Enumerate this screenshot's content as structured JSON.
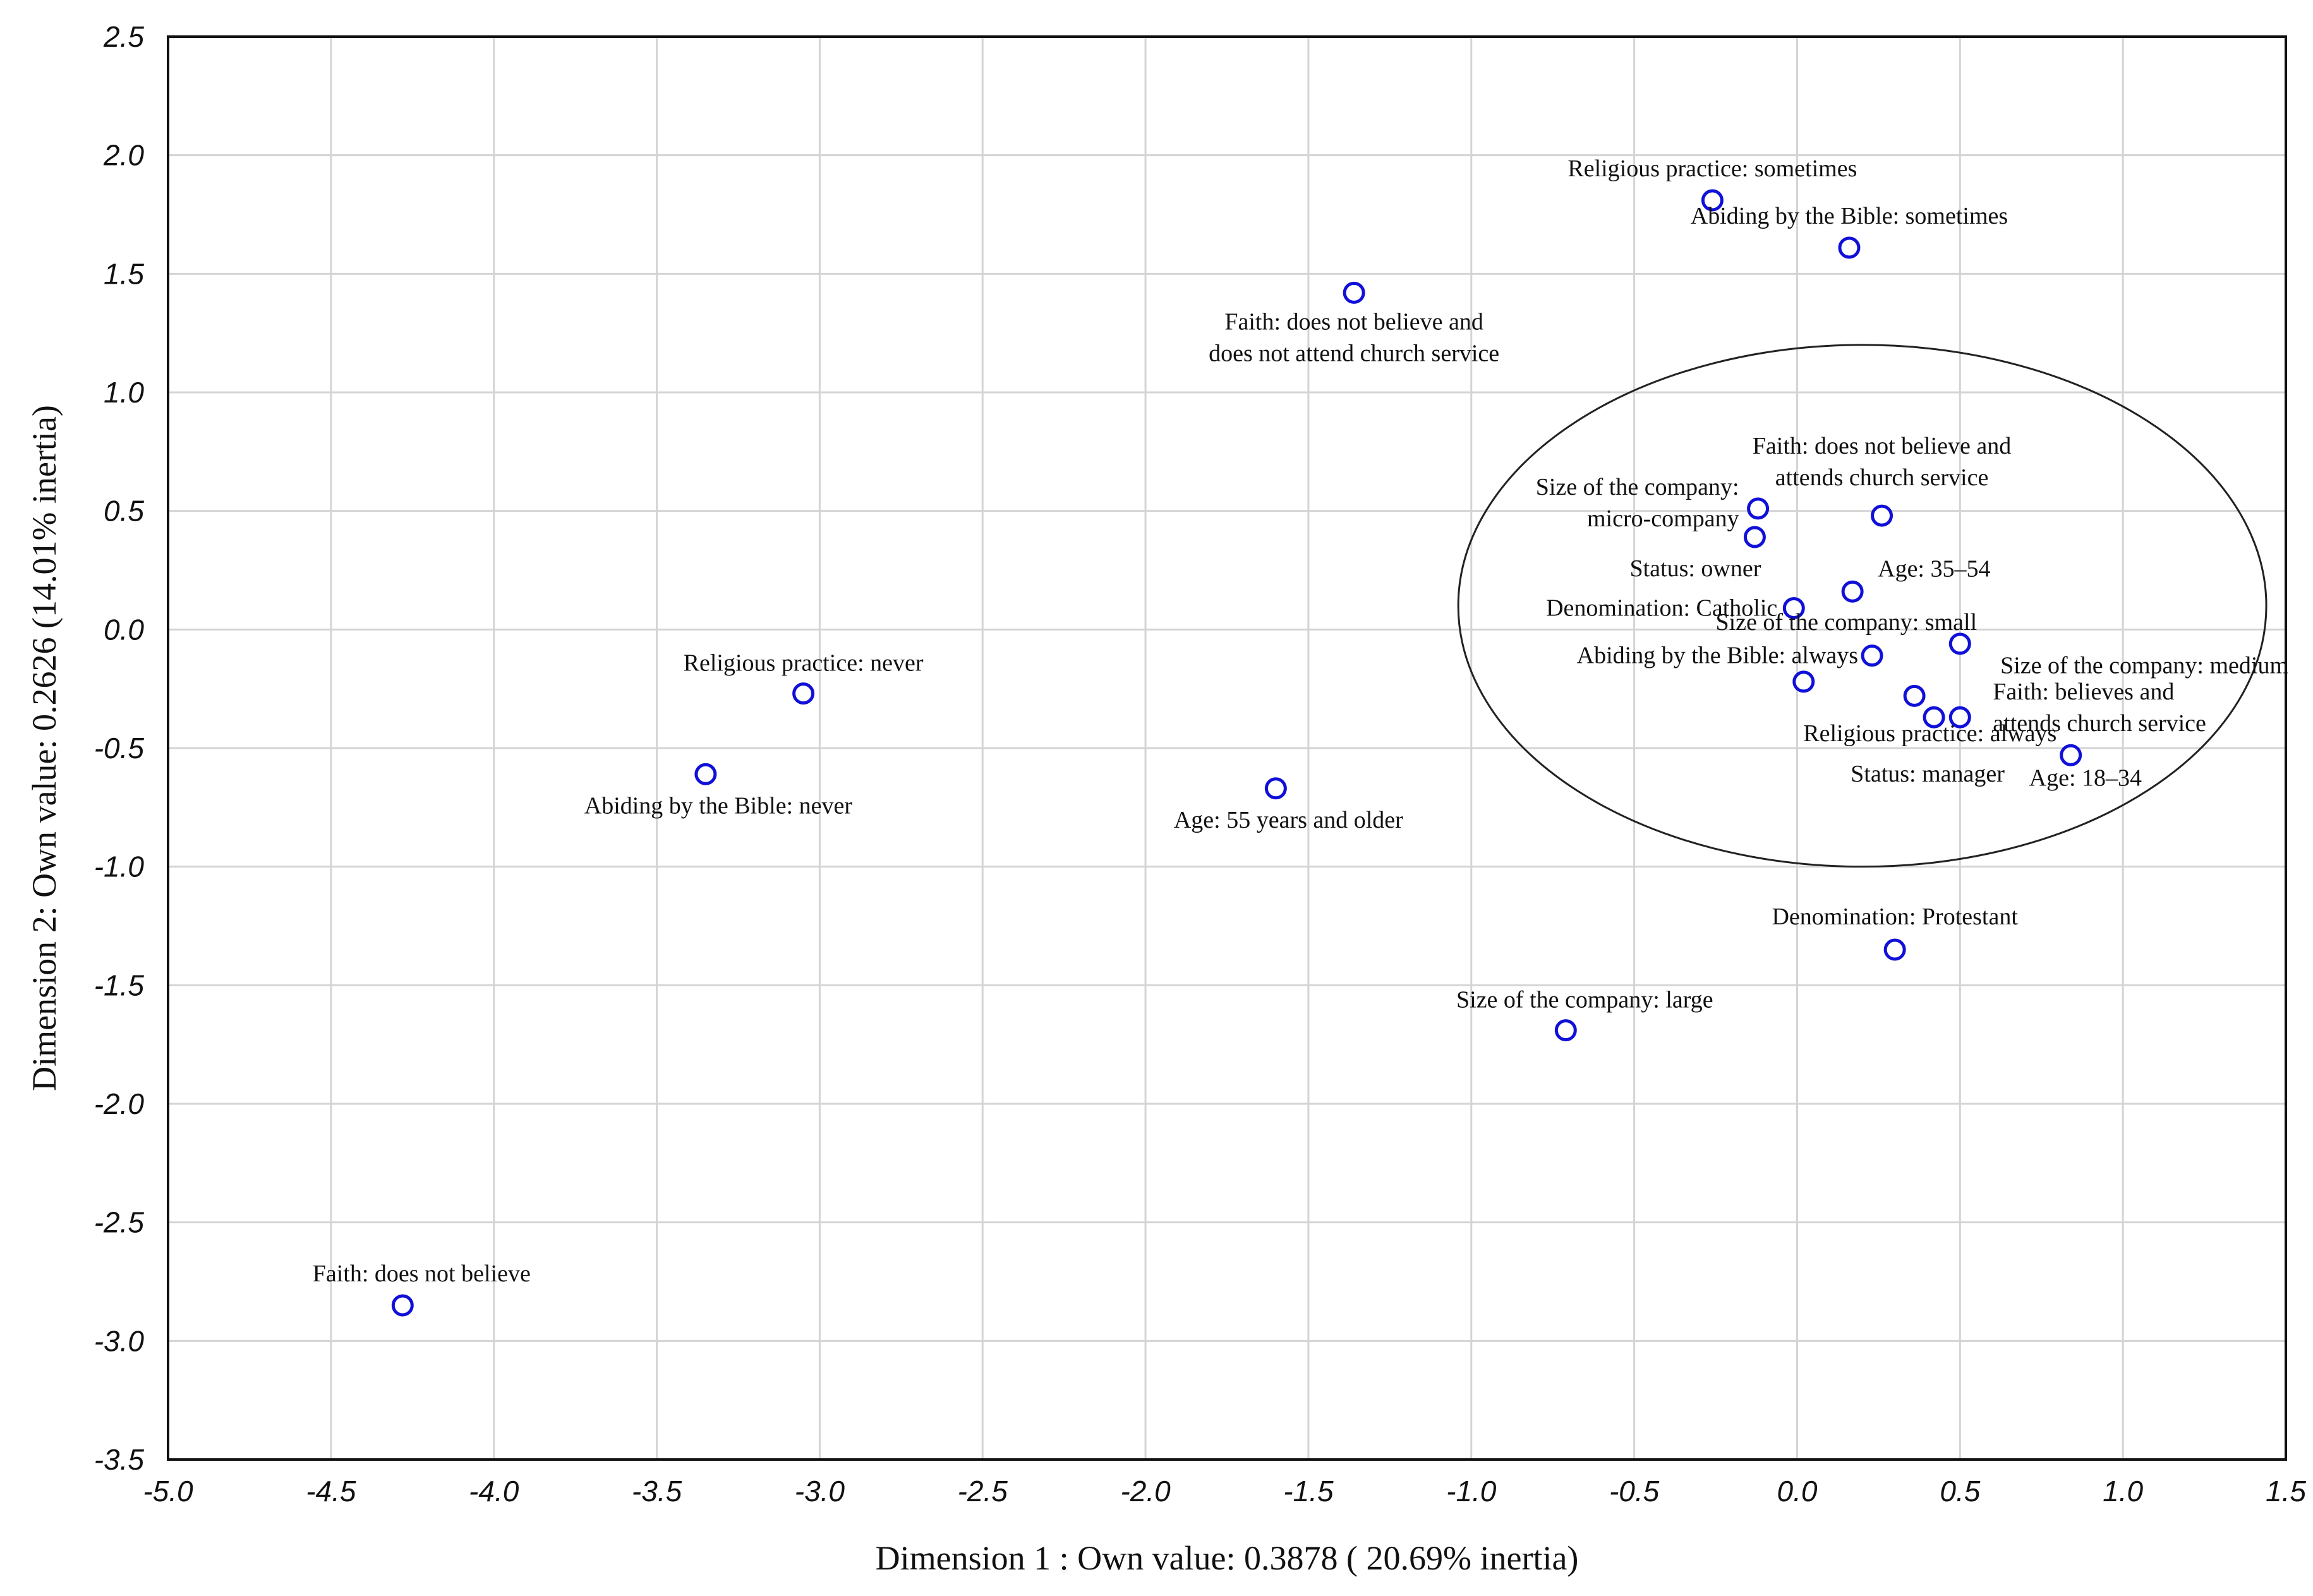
{
  "chart_data": {
    "type": "scatter",
    "title": "",
    "xlabel": "Dimension 1 : Own value: 0.3878 ( 20.69% inertia)",
    "ylabel": "Dimension 2: Own value: 0.2626 (14.01% inertia)",
    "xlim": [
      -5.0,
      1.5
    ],
    "ylim": [
      -3.5,
      2.5
    ],
    "grid": true,
    "xticks": [
      "-5.0",
      "-4.5",
      "-4.0",
      "-3.5",
      "-3.0",
      "-2.5",
      "-2.0",
      "-1.5",
      "-1.0",
      "-0.5",
      "0.0",
      "0.5",
      "1.0",
      "1.5"
    ],
    "yticks": [
      "2.5",
      "2.0",
      "1.5",
      "1.0",
      "0.5",
      "0.0",
      "-0.5",
      "-1.0",
      "-1.5",
      "-2.0",
      "-2.5",
      "-3.0",
      "-3.5"
    ],
    "points": [
      {
        "x": -0.26,
        "y": 1.81,
        "label": [
          "Religious practice: sometimes"
        ]
      },
      {
        "x": 0.16,
        "y": 1.61,
        "label": [
          "Abiding by the Bible: sometimes"
        ]
      },
      {
        "x": -1.36,
        "y": 1.42,
        "label": [
          "Faith:  does not believe  and",
          "does not attend church  service"
        ]
      },
      {
        "x": -0.12,
        "y": 0.51,
        "label": [
          "Size of the company:",
          "micro-company"
        ]
      },
      {
        "x": 0.26,
        "y": 0.48,
        "label": [
          "Faith: does not believe and",
          "attends church service"
        ]
      },
      {
        "x": -0.13,
        "y": 0.39,
        "label": [
          "Status: owner"
        ]
      },
      {
        "x": 0.17,
        "y": 0.16,
        "label": [
          "Age: 35–54"
        ]
      },
      {
        "x": -0.01,
        "y": 0.09,
        "label": [
          "Denomination: Catholic"
        ]
      },
      {
        "x": 0.5,
        "y": -0.06,
        "label": [
          "Size of the company:  small"
        ]
      },
      {
        "x": 0.23,
        "y": -0.11,
        "label": [
          "Abiding by the Bible: always"
        ]
      },
      {
        "x": 0.02,
        "y": -0.22,
        "label": [
          "Religious practice: always"
        ]
      },
      {
        "x": 0.36,
        "y": -0.28,
        "label": [
          "Size of the company: medium"
        ]
      },
      {
        "x": 0.42,
        "y": -0.37,
        "label": [
          "Status: manager"
        ]
      },
      {
        "x": 0.5,
        "y": -0.37,
        "label": [
          "Faith: believes and",
          "attends church service"
        ]
      },
      {
        "x": 0.84,
        "y": -0.53,
        "label": [
          "Age: 18–34"
        ]
      },
      {
        "x": -3.05,
        "y": -0.27,
        "label": [
          "Religious practice: never"
        ]
      },
      {
        "x": -3.35,
        "y": -0.61,
        "label": [
          "Abiding by the Bible: never"
        ]
      },
      {
        "x": -1.6,
        "y": -0.67,
        "label": [
          "Age: 55 years and older"
        ]
      },
      {
        "x": 0.3,
        "y": -1.35,
        "label": [
          "Denomination: Protestant"
        ]
      },
      {
        "x": -0.71,
        "y": -1.69,
        "label": [
          "Size of the company: large"
        ]
      },
      {
        "x": -4.28,
        "y": -2.85,
        "label": [
          "Faith: does not believe"
        ]
      }
    ],
    "annotations": [
      {
        "type": "ellipse",
        "note": "cluster",
        "center": [
          0.2,
          0.1
        ],
        "radius": [
          1.24,
          1.1
        ]
      }
    ],
    "marker_color": "#1010d8",
    "grid_color": "#d4d4d4"
  }
}
